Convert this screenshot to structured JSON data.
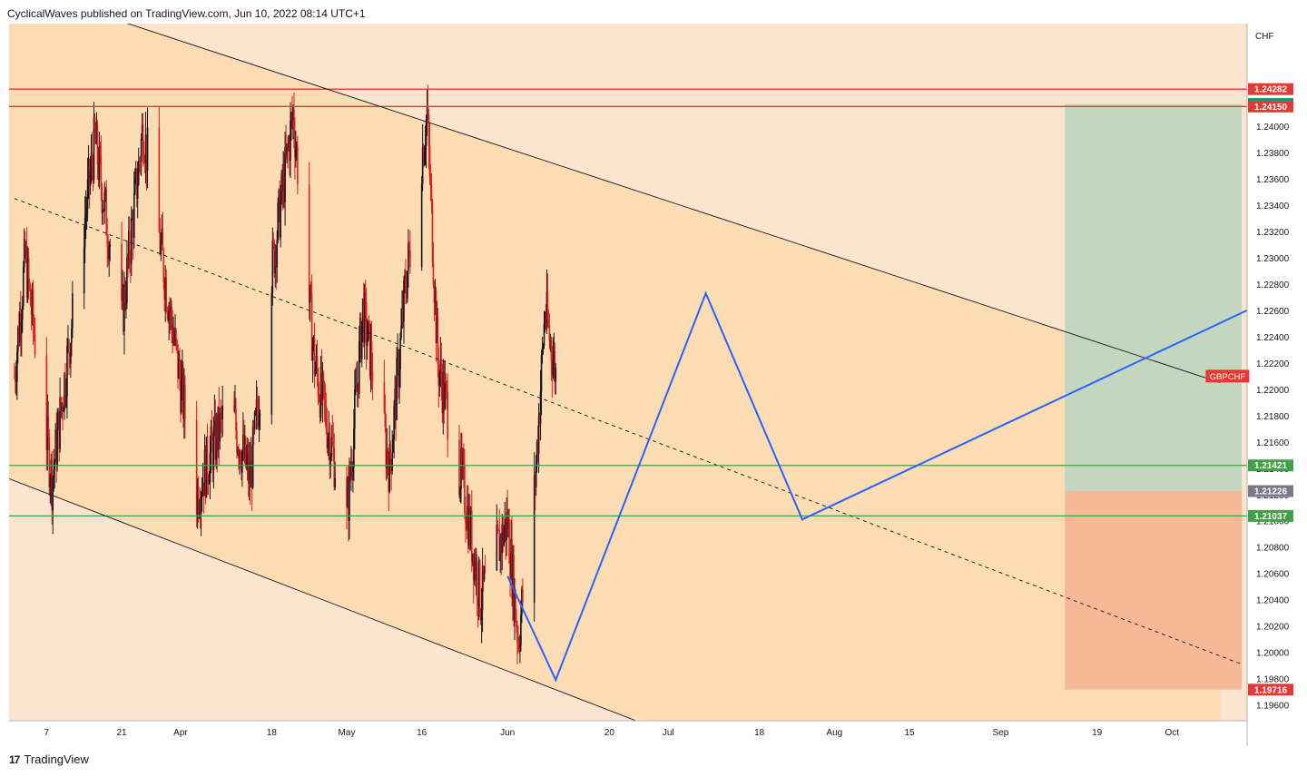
{
  "header": {
    "published": "CyclicalWaves published on TradingView.com, Jun 10, 2022 08:14 UTC+1"
  },
  "footer": {
    "brand": "TradingView",
    "logo_icon": "tradingview-logo-icon"
  },
  "colors": {
    "background": "#fce5cf",
    "channel_fill": "#fbdcb3",
    "candle_up": "#131722",
    "candle_down": "#e0201f",
    "resistance": "#e53935",
    "support": "#43a047",
    "projection": "#2962ff",
    "target_zone": "#c2d6c0",
    "stop_zone": "#f6b896",
    "symbol_badge": "#e53935"
  },
  "chart_data": {
    "type": "candlestick",
    "symbol": "GBPCHF",
    "currency": "CHF",
    "y_ticks": [
      1.196,
      1.198,
      1.2,
      1.202,
      1.204,
      1.206,
      1.208,
      1.21,
      1.212,
      1.214,
      1.216,
      1.218,
      1.22,
      1.222,
      1.224,
      1.226,
      1.228,
      1.23,
      1.232,
      1.234,
      1.236,
      1.238,
      1.24
    ],
    "y_tick_labels": [
      "1.19600",
      "1.19800",
      "1.20000",
      "1.20200",
      "1.20400",
      "1.20600",
      "1.20800",
      "1.21000",
      "1.21200",
      "1.21400",
      "1.21600",
      "1.21800",
      "1.22000",
      "1.22200",
      "1.22400",
      "1.22600",
      "1.22800",
      "1.23000",
      "1.23200",
      "1.23400",
      "1.23600",
      "1.23800",
      "1.24000"
    ],
    "x_ticks": [
      {
        "label": "7",
        "date": "2022-03-07"
      },
      {
        "label": "21",
        "date": "2022-03-21"
      },
      {
        "label": "Apr",
        "date": "2022-04-01"
      },
      {
        "label": "18",
        "date": "2022-04-18"
      },
      {
        "label": "May",
        "date": "2022-05-02"
      },
      {
        "label": "16",
        "date": "2022-05-16"
      },
      {
        "label": "Jun",
        "date": "2022-06-01"
      },
      {
        "label": "20",
        "date": "2022-06-20"
      },
      {
        "label": "Jul",
        "date": "2022-07-01"
      },
      {
        "label": "18",
        "date": "2022-07-18"
      },
      {
        "label": "Aug",
        "date": "2022-08-01"
      },
      {
        "label": "15",
        "date": "2022-08-15"
      },
      {
        "label": "Sep",
        "date": "2022-09-01"
      },
      {
        "label": "19",
        "date": "2022-09-19"
      },
      {
        "label": "Oct",
        "date": "2022-10-03"
      }
    ],
    "x_range": [
      "2022-02-28",
      "2022-10-17"
    ],
    "y_range": [
      1.1948,
      1.2478
    ],
    "horizontal_levels": [
      {
        "value": 1.24282,
        "label": "1.24282",
        "kind": "resistance"
      },
      {
        "value": 1.2415,
        "label": "1.24150",
        "kind": "resistance"
      },
      {
        "value": 1.21421,
        "label": "1.21421",
        "kind": "support"
      },
      {
        "value": 1.21037,
        "label": "1.21037",
        "kind": "support"
      }
    ],
    "price_tags": [
      {
        "value": 1.24282,
        "label": "1.24282",
        "color": "#e53935"
      },
      {
        "value": 1.24169,
        "label": "1.24169",
        "color": "#089981"
      },
      {
        "value": 1.2415,
        "label": "1.24150",
        "color": "#e53935"
      },
      {
        "value": 1.21421,
        "label": "1.21421",
        "color": "#43a047"
      },
      {
        "value": 1.21226,
        "label": "1.21226",
        "color": "#787b86"
      },
      {
        "value": 1.21037,
        "label": "1.21037",
        "color": "#43a047"
      },
      {
        "value": 1.19716,
        "label": "1.19716",
        "color": "#e53935"
      }
    ],
    "channel": {
      "upper": [
        {
          "date": "2022-03-08",
          "price": 1.2497
        },
        {
          "date": "2022-10-12",
          "price": 1.2205
        }
      ],
      "lower": [
        {
          "date": "2022-02-28",
          "price": 1.2132
        },
        {
          "date": "2022-06-25",
          "price": 1.1948
        }
      ],
      "mid": [
        {
          "date": "2022-03-01",
          "price": 1.2345
        },
        {
          "date": "2022-10-16",
          "price": 1.1991
        }
      ]
    },
    "projection": [
      {
        "date": "2022-06-01",
        "price": 1.2058
      },
      {
        "date": "2022-06-10",
        "price": 1.1979
      },
      {
        "date": "2022-07-08",
        "price": 1.2273
      },
      {
        "date": "2022-07-26",
        "price": 1.2101
      },
      {
        "date": "2022-10-17",
        "price": 1.226
      }
    ],
    "position_box": {
      "start": "2022-09-13",
      "end": "2022-10-16",
      "entry": 1.21226,
      "target": 1.24169,
      "stop": 1.19716
    },
    "symbol_label": {
      "date": "2022-10-13",
      "price": 1.221,
      "text": "GBPCHF"
    },
    "candles_seed": {
      "start": "2022-03-01",
      "end": "2022-06-10",
      "bar_hours": 4
    }
  }
}
